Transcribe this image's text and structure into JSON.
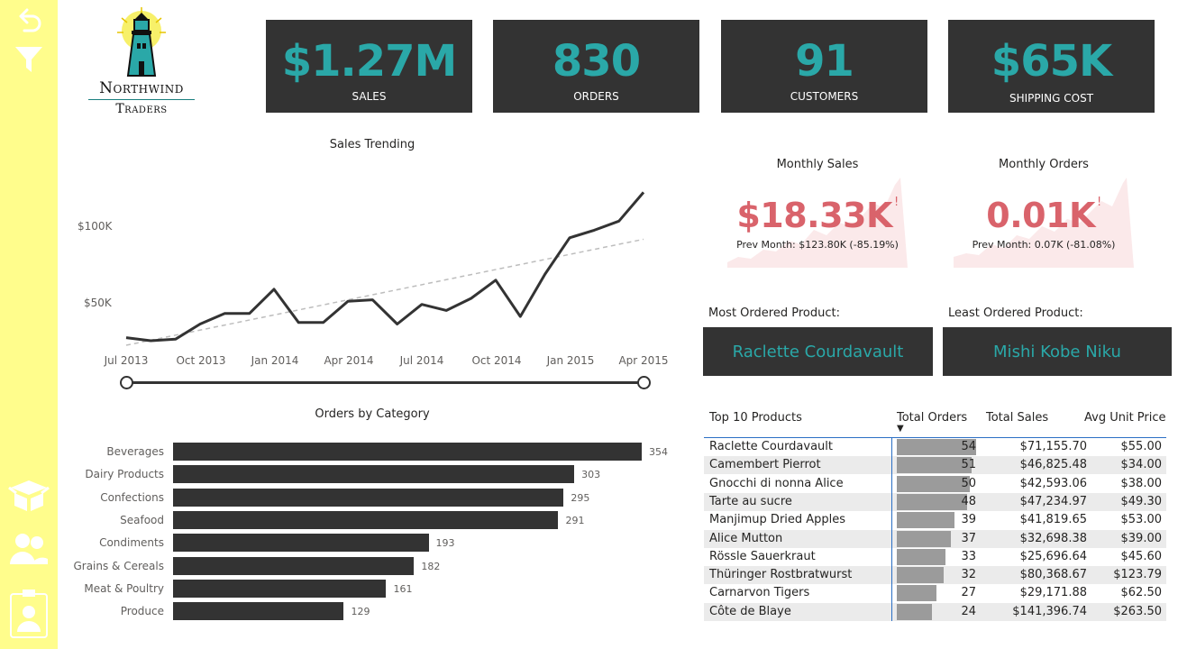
{
  "logo": {
    "line1": "Northwind",
    "line2": "Traders"
  },
  "kpis": [
    {
      "value": "$1.27M",
      "label": "SALES"
    },
    {
      "value": "830",
      "label": "ORDERS"
    },
    {
      "value": "91",
      "label": "CUSTOMERS"
    },
    {
      "value": "$65K",
      "label": "SHIPPING COST"
    }
  ],
  "sales_trending": {
    "title": "Sales Trending",
    "chart_data": {
      "type": "line",
      "title": "Sales Trending",
      "x_tick_labels": [
        "Jul 2013",
        "Oct 2013",
        "Jan 2014",
        "Apr 2014",
        "Jul 2014",
        "Oct 2014",
        "Jan 2015",
        "Apr 2015"
      ],
      "y_tick_labels": [
        "$50K",
        "$100K"
      ],
      "series": [
        {
          "name": "Sales",
          "values": [
            27,
            25,
            26,
            36,
            43,
            43,
            59,
            37,
            37,
            51,
            52,
            36,
            49,
            45,
            53,
            65,
            41,
            69,
            93,
            98,
            104,
            123
          ]
        },
        {
          "name": "Trend",
          "style": "dashed",
          "values": [
            22,
            92
          ]
        }
      ],
      "ylim": [
        10,
        130
      ]
    }
  },
  "date_slider": {
    "start": "Jul 2013",
    "end": "Apr 2015"
  },
  "monthly_sales": {
    "title": "Monthly Sales",
    "value": "$18.33K",
    "prev": "Prev Month: $123.80K (-85.19%)",
    "flag": "!"
  },
  "monthly_orders": {
    "title": "Monthly Orders",
    "value": "0.01K",
    "prev": "Prev Month: 0.07K (-81.08%)",
    "flag": "!"
  },
  "most_ordered": {
    "label": "Most Ordered Product:",
    "value": "Raclette Courdavault"
  },
  "least_ordered": {
    "label": "Least Ordered Product:",
    "value": "Mishi Kobe Niku"
  },
  "orders_by_category": {
    "title": "Orders by Category",
    "chart_data": {
      "type": "bar",
      "orientation": "horizontal",
      "title": "Orders by Category",
      "categories": [
        "Beverages",
        "Dairy Products",
        "Confections",
        "Seafood",
        "Condiments",
        "Grains & Cereals",
        "Meat & Poultry",
        "Produce"
      ],
      "values": [
        354,
        303,
        295,
        291,
        193,
        182,
        161,
        129
      ],
      "xlim": [
        0,
        354
      ]
    }
  },
  "top_products": {
    "headers": [
      "Top 10 Products",
      "Total Orders",
      "Total Sales",
      "Avg Unit Price"
    ],
    "sort_indicator": "▼",
    "rows": [
      {
        "product": "Raclette Courdavault",
        "orders": 54,
        "sales": "$71,155.70",
        "price": "$55.00"
      },
      {
        "product": "Camembert Pierrot",
        "orders": 51,
        "sales": "$46,825.48",
        "price": "$34.00"
      },
      {
        "product": "Gnocchi di nonna Alice",
        "orders": 50,
        "sales": "$42,593.06",
        "price": "$38.00"
      },
      {
        "product": "Tarte au sucre",
        "orders": 48,
        "sales": "$47,234.97",
        "price": "$49.30"
      },
      {
        "product": "Manjimup Dried Apples",
        "orders": 39,
        "sales": "$41,819.65",
        "price": "$53.00"
      },
      {
        "product": "Alice Mutton",
        "orders": 37,
        "sales": "$32,698.38",
        "price": "$39.00"
      },
      {
        "product": "Rössle Sauerkraut",
        "orders": 33,
        "sales": "$25,696.64",
        "price": "$45.60"
      },
      {
        "product": "Thüringer Rostbratwurst",
        "orders": 32,
        "sales": "$80,368.67",
        "price": "$123.79"
      },
      {
        "product": "Carnarvon Tigers",
        "orders": 27,
        "sales": "$29,171.88",
        "price": "$62.50"
      },
      {
        "product": "Côte de Blaye",
        "orders": 24,
        "sales": "$141,396.74",
        "price": "$263.50"
      }
    ]
  },
  "sidebar": {
    "icons": [
      "back-icon",
      "filter-icon",
      "box-icon",
      "people-icon",
      "badge-icon"
    ]
  },
  "colors": {
    "sidebar": "#fffd8c",
    "card": "#333333",
    "accent": "#2aa8a8",
    "alert": "#d9636b"
  }
}
